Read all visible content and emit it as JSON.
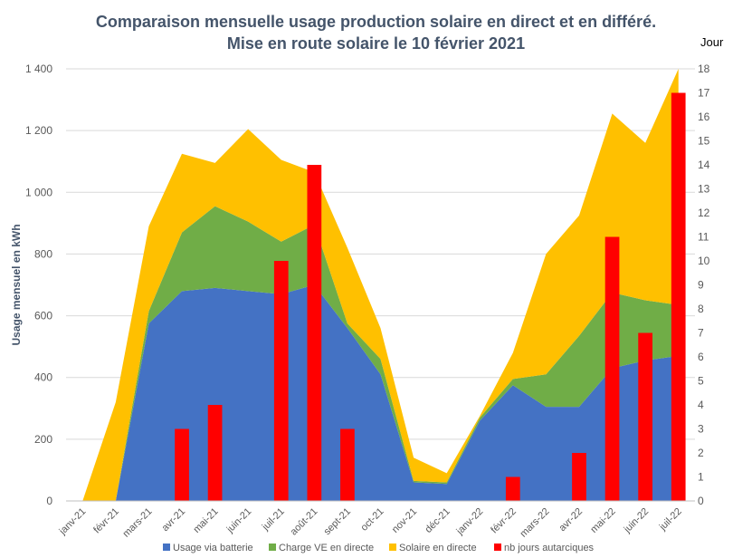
{
  "title_line1": "Comparaison  mensuelle  usage production  solaire  en direct  et en différé.",
  "title_line2": "Mise  en route  solaire  le 10 février 2021",
  "chart_data": {
    "type": "area",
    "categories": [
      "janv-21",
      "févr-21",
      "mars-21",
      "avr-21",
      "mai-21",
      "juin-21",
      "juil-21",
      "août-21",
      "sept-21",
      "oct-21",
      "nov-21",
      "déc-21",
      "janv-22",
      "févr-22",
      "mars-22",
      "avr-22",
      "mai-22",
      "juin-22",
      "juil-22"
    ],
    "ylabel": "Usage  mensuel en kWh",
    "y2label": "Jour",
    "ylim": [
      0,
      1400
    ],
    "y2lim": [
      0,
      18
    ],
    "yticks": [
      "0",
      "200",
      "400",
      "600",
      "800",
      "1 000",
      "1 200",
      "1 400"
    ],
    "y2ticks": [
      "0",
      "1",
      "2",
      "3",
      "4",
      "5",
      "6",
      "7",
      "8",
      "9",
      "10",
      "11",
      "12",
      "13",
      "14",
      "15",
      "16",
      "17",
      "18"
    ],
    "grid": true,
    "legend_position": "bottom",
    "series": [
      {
        "name": "Usage via batterie",
        "kind": "area",
        "color": "#4472c4",
        "values": [
          0,
          0,
          575,
          680,
          690,
          680,
          670,
          700,
          560,
          410,
          60,
          55,
          260,
          375,
          305,
          305,
          430,
          455,
          470
        ]
      },
      {
        "name": "Charge VE en directe",
        "kind": "area",
        "color": "#70ad47",
        "values": [
          0,
          0,
          40,
          190,
          265,
          225,
          170,
          195,
          15,
          50,
          5,
          5,
          10,
          20,
          105,
          230,
          245,
          195,
          165
        ]
      },
      {
        "name": "Solaire en directe",
        "kind": "area",
        "color": "#ffc000",
        "values": [
          0,
          320,
          275,
          255,
          140,
          300,
          265,
          170,
          245,
          100,
          75,
          30,
          5,
          85,
          390,
          390,
          580,
          510,
          765
        ]
      },
      {
        "name": "nb jours autarciques",
        "kind": "bar",
        "axis": "secondary",
        "color": "#ff0000",
        "values": [
          0,
          0,
          0,
          3,
          4,
          0,
          10,
          14,
          3,
          0,
          0,
          0,
          0,
          1,
          0,
          2,
          11,
          7,
          17
        ]
      }
    ]
  }
}
